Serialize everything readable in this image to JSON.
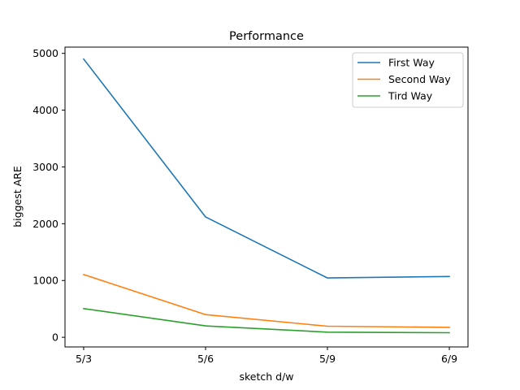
{
  "chart_data": {
    "type": "line",
    "title": "Performance",
    "xlabel": "sketch d/w",
    "ylabel": "biggest ARE",
    "categories": [
      "5/3",
      "5/6",
      "5/9",
      "6/9"
    ],
    "ylim": [
      -170,
      5110
    ],
    "yticks": [
      0,
      1000,
      2000,
      3000,
      4000,
      5000
    ],
    "grid": false,
    "legend_position": "top-right",
    "series": [
      {
        "name": "First Way",
        "color": "#1f77b4",
        "values": [
          4900,
          2120,
          1045,
          1070
        ]
      },
      {
        "name": "Second Way",
        "color": "#ff7f0e",
        "values": [
          1105,
          400,
          195,
          175
        ]
      },
      {
        "name": "Tird Way",
        "color": "#2ca02c",
        "values": [
          505,
          200,
          90,
          80
        ]
      }
    ]
  }
}
